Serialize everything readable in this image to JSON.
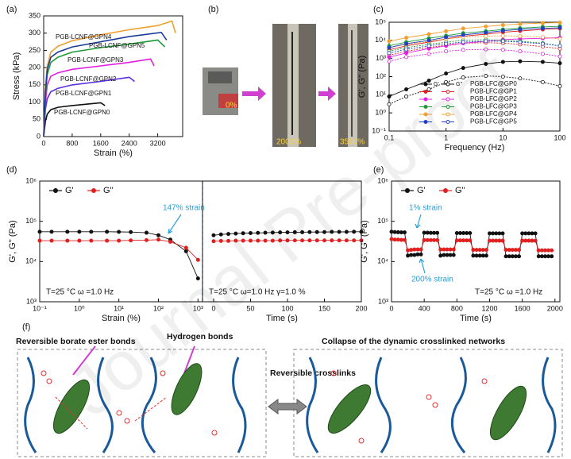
{
  "figure": {
    "watermark": "Journal Pre-proof"
  },
  "chart_data": [
    {
      "panel": "(a)",
      "type": "line",
      "xlabel": "Strain (%)",
      "ylabel": "Stress (kPa)",
      "xlim": [
        0,
        3900
      ],
      "xticks": [
        0,
        800,
        1600,
        2400,
        3200
      ],
      "ylim": [
        0,
        350
      ],
      "yticks": [
        0,
        50,
        100,
        150,
        200,
        250,
        300,
        350
      ],
      "series": [
        {
          "name": "PGB-LCNF@GPN0",
          "color": "#111111",
          "x": [
            0,
            50,
            100,
            200,
            400,
            800,
            1200,
            1600,
            1720
          ],
          "values": [
            0,
            45,
            65,
            78,
            85,
            90,
            94,
            98,
            90
          ]
        },
        {
          "name": "PGB-LCNF@GPN1",
          "color": "#5a2de0",
          "x": [
            0,
            50,
            100,
            200,
            400,
            800,
            1600,
            2400,
            2550
          ],
          "values": [
            0,
            80,
            110,
            130,
            140,
            150,
            160,
            172,
            160
          ]
        },
        {
          "name": "PGB-LCNF@GPN2",
          "color": "#e020e0",
          "x": [
            0,
            50,
            100,
            200,
            400,
            800,
            1600,
            2400,
            3000,
            3100
          ],
          "values": [
            0,
            100,
            150,
            175,
            185,
            195,
            205,
            215,
            225,
            205
          ]
        },
        {
          "name": "PGB-LCNF@GPN3",
          "color": "#1f9a3a",
          "x": [
            0,
            50,
            100,
            200,
            400,
            800,
            1600,
            2400,
            3200,
            3400
          ],
          "values": [
            0,
            120,
            180,
            215,
            230,
            245,
            258,
            268,
            280,
            260
          ]
        },
        {
          "name": "PGB-LCNF@GPN4",
          "color": "#f0a030",
          "x": [
            0,
            50,
            100,
            200,
            400,
            800,
            1600,
            2400,
            3200,
            3600,
            3700
          ],
          "values": [
            0,
            140,
            205,
            245,
            262,
            278,
            295,
            310,
            322,
            335,
            300
          ]
        },
        {
          "name": "PGB-LCNF@GPN5",
          "color": "#1a3a9a",
          "x": [
            0,
            50,
            100,
            200,
            400,
            800,
            1600,
            2400,
            3300,
            3450
          ],
          "values": [
            0,
            130,
            195,
            230,
            245,
            260,
            275,
            290,
            302,
            280
          ]
        }
      ]
    },
    {
      "panel": "(c)",
      "type": "line",
      "xlabel": "Frequency (Hz)",
      "ylabel": "G', G'' (Pa)",
      "log_x": true,
      "log_y": true,
      "markers": true,
      "xlim": [
        0.1,
        100
      ],
      "xticks": [
        0.1,
        1,
        10,
        100
      ],
      "ylim": [
        0.1,
        100000
      ],
      "yticks": [
        {
          "value": 0.1,
          "label": "10⁻¹"
        },
        {
          "value": 1,
          "label": "10⁰"
        },
        {
          "value": 10,
          "label": "10¹"
        },
        {
          "value": 100,
          "label": "10²"
        },
        {
          "value": 1000,
          "label": "10³"
        },
        {
          "value": 10000,
          "label": "10⁴"
        },
        {
          "value": 100000,
          "label": "10⁵"
        }
      ],
      "legend_headers": [
        "G'",
        "G''"
      ],
      "x": [
        0.1,
        0.2,
        0.5,
        1,
        2,
        5,
        10,
        20,
        50,
        100
      ],
      "series": [
        {
          "name": "PGB-LFC@GP0",
          "color": "#111111",
          "values": [
            8,
            20,
            60,
            150,
            300,
            500,
            650,
            700,
            650,
            550
          ],
          "values2": [
            3,
            8,
            20,
            50,
            90,
            110,
            100,
            80,
            50,
            30
          ]
        },
        {
          "name": "PGB-LFC@GP1",
          "color": "#e02020",
          "values": [
            3000,
            5000,
            8000,
            12000,
            17000,
            22000,
            28000,
            33000,
            40000,
            45000
          ],
          "values2": [
            1500,
            2500,
            4000,
            5500,
            7000,
            7500,
            7000,
            6000,
            4500,
            3500
          ]
        },
        {
          "name": "PGB-LFC@GP2",
          "color": "#e020e0",
          "values": [
            1200,
            2000,
            3500,
            5000,
            7000,
            9000,
            11000,
            12000,
            13000,
            14000
          ],
          "values2": [
            700,
            1200,
            1800,
            2500,
            3000,
            3200,
            3000,
            2500,
            1800,
            1300
          ]
        },
        {
          "name": "PGB-LFC@GP3",
          "color": "#1f9a3a",
          "values": [
            5000,
            8000,
            13000,
            18000,
            25000,
            32000,
            40000,
            47000,
            55000,
            60000
          ],
          "values2": [
            2500,
            4000,
            6000,
            8000,
            10000,
            11000,
            10000,
            9000,
            7000,
            5000
          ]
        },
        {
          "name": "PGB-LFC@GP4",
          "color": "#f0a030",
          "values": [
            9000,
            14000,
            22000,
            32000,
            45000,
            58000,
            70000,
            80000,
            90000,
            95000
          ],
          "values2": [
            4000,
            6000,
            9000,
            12000,
            15000,
            17000,
            18000,
            17000,
            15000,
            12000
          ]
        },
        {
          "name": "PGB-LFC@GP5",
          "color": "#2040c0",
          "values": [
            4000,
            6500,
            10000,
            15000,
            20000,
            27000,
            34000,
            40000,
            46000,
            50000
          ],
          "values2": [
            2000,
            3200,
            5000,
            6500,
            8000,
            9000,
            9000,
            8000,
            6500,
            5000
          ]
        }
      ]
    },
    {
      "panel": "(d)",
      "type": "line",
      "xlabel": "Strain (%)",
      "ylabel": "G', G'' (Pa)",
      "log_x": true,
      "log_y": true,
      "markers": true,
      "xlim": [
        0.1,
        1300
      ],
      "xticks": [
        {
          "value": 0.1,
          "label": "10⁻¹"
        },
        {
          "value": 1,
          "label": "10⁰"
        },
        {
          "value": 10,
          "label": "10¹"
        },
        {
          "value": 100,
          "label": "10²"
        },
        {
          "value": 1000,
          "label": "10³"
        }
      ],
      "ylim": [
        1000,
        1000000
      ],
      "yticks": [
        {
          "value": 1000,
          "label": "10³"
        },
        {
          "value": 10000,
          "label": "10⁴"
        },
        {
          "value": 100000,
          "label": "10⁵"
        },
        {
          "value": 1000000,
          "label": "10⁶"
        }
      ],
      "annotations": [
        "147% strain",
        "T=25 °C   ω =1.0 Hz"
      ],
      "x": [
        0.1,
        0.2,
        0.5,
        1,
        2,
        5,
        10,
        20,
        50,
        100,
        200,
        500,
        1000
      ],
      "series": [
        {
          "name": "G'",
          "color": "#111111",
          "values": [
            55000,
            55000,
            55000,
            55000,
            55000,
            55000,
            54500,
            54000,
            52000,
            45000,
            35000,
            18000,
            3800
          ]
        },
        {
          "name": "G''",
          "color": "#e02020",
          "values": [
            33000,
            33000,
            33000,
            33000,
            33000,
            33000,
            33000,
            33500,
            34000,
            35000,
            31000,
            22000,
            11000
          ]
        }
      ]
    },
    {
      "type": "line",
      "xlabel": "Time (s)",
      "log_y": true,
      "markers": true,
      "xlim": [
        -15,
        200
      ],
      "xticks": [
        0,
        50,
        100,
        150,
        200
      ],
      "ylim": [
        1000,
        1000000
      ],
      "annotations": [
        "T=25 °C   ω=1.0 Hz   γ=1.0 %"
      ],
      "x": [
        0,
        10,
        20,
        30,
        40,
        50,
        60,
        70,
        80,
        90,
        100,
        110,
        120,
        130,
        140,
        150,
        160,
        170,
        180,
        190,
        200
      ],
      "series": [
        {
          "color": "#111111",
          "values": [
            45000,
            47000,
            48500,
            49500,
            50500,
            51000,
            51500,
            52000,
            52500,
            53000,
            53000,
            53500,
            53500,
            54000,
            54000,
            54000,
            54500,
            54500,
            54500,
            55000,
            55000
          ]
        },
        {
          "color": "#e02020",
          "values": [
            32000,
            32500,
            32500,
            33000,
            33000,
            33000,
            33000,
            33000,
            33000,
            33500,
            33500,
            33500,
            33500,
            33500,
            33500,
            33500,
            33500,
            33500,
            33500,
            33500,
            33500
          ]
        }
      ]
    },
    {
      "panel": "(e)",
      "type": "line",
      "xlabel": "Time (s)",
      "ylabel": "G', G'' (Pa)",
      "log_y": true,
      "markers": true,
      "xlim": [
        0,
        2060
      ],
      "xticks": [
        0,
        400,
        800,
        1200,
        1600,
        2000
      ],
      "ylim": [
        1000,
        1000000
      ],
      "yticks": [
        {
          "value": 1000,
          "label": "10³"
        },
        {
          "value": 10000,
          "label": "10⁴"
        },
        {
          "value": 100000,
          "label": "10⁵"
        },
        {
          "value": 1000000,
          "label": "10⁶"
        }
      ],
      "annotations": [
        "1% strain",
        "200% strain",
        "T=25 °C   ω =1.0 Hz"
      ],
      "x": [
        0,
        40,
        80,
        120,
        160,
        200,
        240,
        280,
        320,
        360,
        400,
        440,
        480,
        520,
        560,
        600,
        640,
        680,
        720,
        760,
        800,
        840,
        880,
        920,
        960,
        1000,
        1040,
        1080,
        1120,
        1160,
        1200,
        1240,
        1280,
        1320,
        1360,
        1400,
        1440,
        1480,
        1520,
        1560,
        1600,
        1640,
        1680,
        1720,
        1760,
        1800,
        1840,
        1880,
        1920,
        1960
      ],
      "series": [
        {
          "name": "G'",
          "color": "#111111",
          "values": [
            55000,
            54000,
            53500,
            53000,
            53000,
            14000,
            14500,
            14500,
            15000,
            15000,
            52000,
            52000,
            51500,
            51500,
            51500,
            14000,
            14500,
            14500,
            14500,
            14500,
            51000,
            51000,
            51000,
            51000,
            51000,
            14000,
            14000,
            14000,
            14000,
            14000,
            50000,
            50000,
            50000,
            50000,
            50000,
            13500,
            13500,
            13500,
            13500,
            13500,
            50000,
            50000,
            50000,
            50000,
            50000,
            13500,
            13500,
            13500,
            13500,
            13500
          ]
        },
        {
          "name": "G''",
          "color": "#e02020",
          "values": [
            36000,
            35000,
            35000,
            34500,
            34500,
            19000,
            19500,
            20000,
            20000,
            20000,
            34000,
            34000,
            34000,
            34000,
            34000,
            20000,
            20000,
            20000,
            20000,
            20000,
            33500,
            33500,
            33500,
            33500,
            33500,
            19500,
            19500,
            19500,
            19500,
            19500,
            33000,
            33000,
            33000,
            33000,
            33000,
            19500,
            19500,
            19500,
            19500,
            19500,
            33000,
            33000,
            33000,
            33000,
            33000,
            19000,
            19000,
            19000,
            19000,
            19000
          ]
        }
      ]
    }
  ],
  "photos": {
    "panel": "(b)",
    "labels": [
      "0%",
      "2000%",
      "3500%"
    ]
  },
  "diagram": {
    "panel": "(f)",
    "labels": [
      "Reversible borate ester bonds",
      "Hydrogen bonds",
      "Reversible crosslinks",
      "Collapse of the dynamic crosslinked networks"
    ]
  }
}
